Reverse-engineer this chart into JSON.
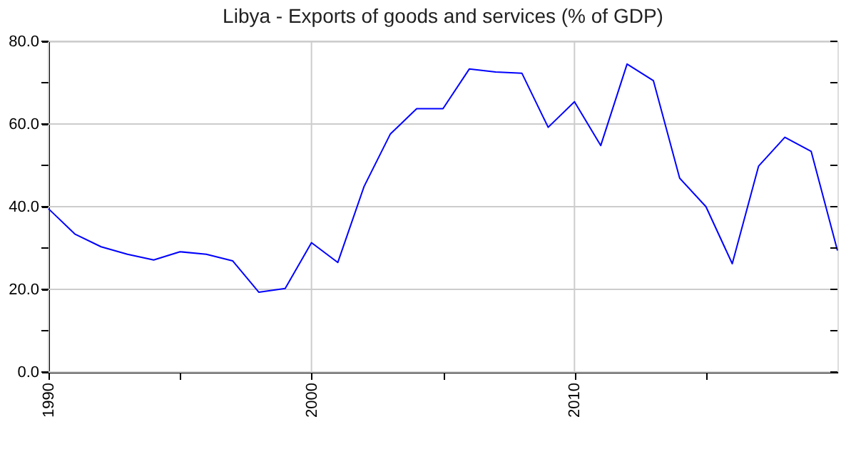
{
  "chart_data": {
    "type": "line",
    "title": "Libya - Exports of goods and services (% of GDP)",
    "x": [
      1990,
      1991,
      1992,
      1993,
      1994,
      1995,
      1996,
      1997,
      1998,
      1999,
      2000,
      2001,
      2002,
      2003,
      2004,
      2005,
      2006,
      2007,
      2008,
      2009,
      2010,
      2011,
      2012,
      2013,
      2014,
      2015,
      2016,
      2017,
      2018,
      2019,
      2020
    ],
    "series": [
      {
        "color": "#0000ff",
        "values": [
          39.5,
          33.4,
          30.3,
          28.5,
          27.1,
          29.1,
          28.5,
          26.9,
          19.3,
          20.2,
          31.3,
          26.5,
          44.9,
          57.6,
          63.7,
          63.7,
          73.3,
          72.6,
          72.3,
          59.2,
          65.4,
          54.8,
          74.5,
          70.5,
          46.9,
          40.0,
          26.2,
          49.8,
          56.8,
          53.4,
          29.4
        ]
      }
    ],
    "xlim": [
      1990,
      2020
    ],
    "xticks": [
      1990,
      {
        "value": 1995,
        "label": null
      },
      2000,
      {
        "value": 2005,
        "label": null
      },
      2010,
      {
        "value": 2015,
        "label": null
      }
    ],
    "ylim": [
      0,
      80
    ],
    "yticks": [
      {
        "value": 0,
        "label": "0.0"
      },
      {
        "value": 10,
        "label": null
      },
      {
        "value": 20,
        "label": "20.0"
      },
      {
        "value": 30,
        "label": null
      },
      {
        "value": 40,
        "label": "40.0"
      },
      {
        "value": 50,
        "label": null
      },
      {
        "value": 60,
        "label": "60.0"
      },
      {
        "value": 70,
        "label": null
      },
      {
        "value": 80,
        "label": "80.0"
      }
    ],
    "grid": true,
    "line_style": "solid",
    "marker": "none"
  }
}
